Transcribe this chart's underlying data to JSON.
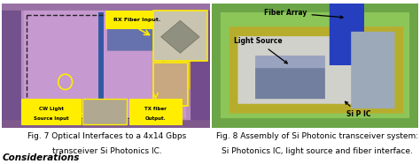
{
  "left_caption_line1": "Fig. 7 Optical Interfaces to a 4x14 Gbps",
  "left_caption_line2": "transceiver Si Photonics IC.",
  "right_caption_line1": "Fig. 8 Assembly of Si Photonic transceiver system:",
  "right_caption_line2": "Si Photonics IC, light source and fiber interface.",
  "bottom_text": "Considerations",
  "bg_color": "#ffffff",
  "caption_fontsize": 6.5,
  "caption_color": "#000000",
  "fig_width": 4.74,
  "fig_height": 1.86,
  "dpi": 100
}
